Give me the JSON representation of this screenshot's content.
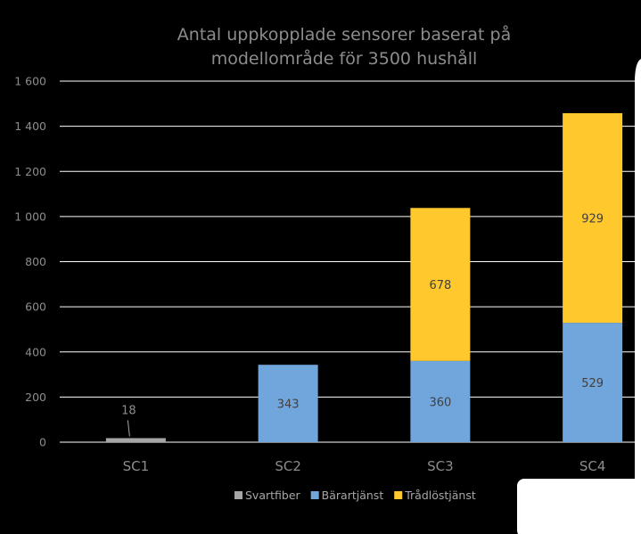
{
  "chart_data": {
    "type": "bar",
    "stacked": true,
    "title": "Antal uppkopplade sensorer baserat på modellområde för 3500 hushåll",
    "title_lines": [
      "Antal uppkopplade sensorer baserat på",
      "modellområde för 3500 hushåll"
    ],
    "categories": [
      "SC1",
      "SC2",
      "SC3",
      "SC4"
    ],
    "series": [
      {
        "name": "Svartfiber",
        "color": "#a6a6a6",
        "values": [
          18,
          0,
          0,
          0
        ],
        "labels": [
          "18",
          "",
          "",
          ""
        ]
      },
      {
        "name": "Bärartjänst",
        "color": "#70a6dc",
        "values": [
          0,
          343,
          360,
          529
        ],
        "labels": [
          "",
          "343",
          "360",
          "529"
        ]
      },
      {
        "name": "Trådlöstjänst",
        "color": "#ffc82d",
        "values": [
          0,
          0,
          678,
          929
        ],
        "labels": [
          "",
          "",
          "678",
          "929"
        ]
      }
    ],
    "ylim": [
      0,
      1600
    ],
    "yticks": [
      0,
      200,
      400,
      600,
      800,
      1000,
      1200,
      1400,
      1600
    ],
    "ytick_labels": [
      "0",
      "200",
      "400",
      "600",
      "800",
      "1 000",
      "1 200",
      "1 400",
      "1 600"
    ],
    "grid": true,
    "legend_position": "bottom",
    "xlabel": "",
    "ylabel": ""
  }
}
